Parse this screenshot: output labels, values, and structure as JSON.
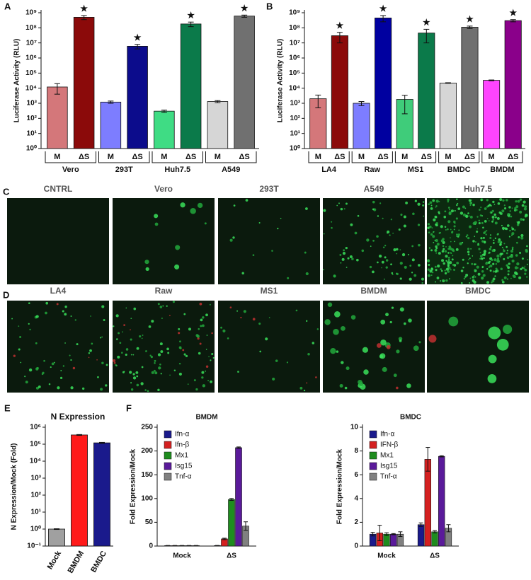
{
  "chart_data": [
    {
      "type": "log_group_bar",
      "panel": "A",
      "ylabel": "Luciferase Activity (RLU)",
      "log": true,
      "ylim": [
        1,
        1000000000
      ],
      "yticks": [
        {
          "value": 1,
          "label": "10⁰"
        },
        {
          "value": 10,
          "label": "10¹"
        },
        {
          "value": 100,
          "label": "10²"
        },
        {
          "value": 1000,
          "label": "10³"
        },
        {
          "value": 10000,
          "label": "10⁴"
        },
        {
          "value": 100000,
          "label": "10⁵"
        },
        {
          "value": 1000000,
          "label": "10⁶"
        },
        {
          "value": 10000000,
          "label": "10⁷"
        },
        {
          "value": 100000000,
          "label": "10⁸"
        },
        {
          "value": 1000000000,
          "label": "10⁹"
        }
      ],
      "groups": [
        {
          "name": "Vero",
          "categories": [
            "M",
            "ΔS"
          ],
          "values": [
            12000,
            500000000
          ],
          "errors": [
            8000,
            150000000
          ],
          "colors": [
            "#d4777a",
            "#8b0a0a"
          ],
          "annotations": [
            null,
            "★"
          ]
        },
        {
          "name": "293T",
          "categories": [
            "M",
            "ΔS"
          ],
          "values": [
            1200,
            6000000
          ],
          "errors": [
            200,
            2000000
          ],
          "colors": [
            "#7d7dff",
            "#0c0c8c"
          ],
          "annotations": [
            null,
            "★"
          ]
        },
        {
          "name": "Huh7.5",
          "categories": [
            "M",
            "ΔS"
          ],
          "values": [
            300,
            180000000
          ],
          "errors": [
            50,
            60000000
          ],
          "colors": [
            "#3fdc84",
            "#0b7a4a"
          ],
          "annotations": [
            null,
            "★"
          ]
        },
        {
          "name": "A549",
          "categories": [
            "M",
            "ΔS"
          ],
          "values": [
            1300,
            600000000
          ],
          "errors": [
            200,
            100000000
          ],
          "colors": [
            "#d6d6d6",
            "#707070"
          ],
          "annotations": [
            null,
            "★"
          ]
        }
      ]
    },
    {
      "type": "log_group_bar",
      "panel": "B",
      "ylabel": "Luciferase Activity (RLU)",
      "log": true,
      "ylim": [
        1,
        1000000000
      ],
      "yticks": [
        {
          "value": 1,
          "label": "10⁰"
        },
        {
          "value": 10,
          "label": "10¹"
        },
        {
          "value": 100,
          "label": "10²"
        },
        {
          "value": 1000,
          "label": "10³"
        },
        {
          "value": 10000,
          "label": "10⁴"
        },
        {
          "value": 100000,
          "label": "10⁵"
        },
        {
          "value": 1000000,
          "label": "10⁶"
        },
        {
          "value": 10000000,
          "label": "10⁷"
        },
        {
          "value": 100000000,
          "label": "10⁸"
        },
        {
          "value": 1000000000,
          "label": "10⁹"
        }
      ],
      "groups": [
        {
          "name": "LA4",
          "categories": [
            "M",
            "ΔS"
          ],
          "values": [
            2000,
            30000000
          ],
          "errors": [
            1500,
            20000000
          ],
          "colors": [
            "#d4777a",
            "#8b0a0a"
          ],
          "annotations": [
            null,
            "★"
          ]
        },
        {
          "name": "Raw",
          "categories": [
            "M",
            "ΔS"
          ],
          "values": [
            1000,
            450000000
          ],
          "errors": [
            300,
            200000000
          ],
          "colors": [
            "#7d7dff",
            "#0000a0"
          ],
          "annotations": [
            null,
            "★"
          ]
        },
        {
          "name": "MS1",
          "categories": [
            "M",
            "ΔS"
          ],
          "values": [
            1800,
            45000000
          ],
          "errors": [
            1600,
            35000000
          ],
          "colors": [
            "#3fcc7a",
            "#0b7a4a"
          ],
          "annotations": [
            null,
            "★"
          ]
        },
        {
          "name": "BMDC",
          "categories": [
            "M",
            "ΔS"
          ],
          "values": [
            22000,
            110000000
          ],
          "errors": [
            1000,
            20000000
          ],
          "colors": [
            "#d6d6d6",
            "#707070"
          ],
          "annotations": [
            null,
            "★"
          ]
        },
        {
          "name": "BMDM",
          "categories": [
            "M",
            "ΔS"
          ],
          "values": [
            33000,
            300000000
          ],
          "errors": [
            2000,
            50000000
          ],
          "colors": [
            "#ff44ff",
            "#8a008a"
          ],
          "annotations": [
            null,
            "★"
          ]
        }
      ]
    },
    {
      "type": "bar",
      "panel": "E",
      "title": "N Expression",
      "ylabel": "N Expression/Mock (Fold)",
      "log": true,
      "ylim": [
        0.1,
        1000000
      ],
      "yticks": [
        {
          "value": 0.1,
          "label": "10⁻¹"
        },
        {
          "value": 1,
          "label": "10⁰"
        },
        {
          "value": 10,
          "label": "10¹"
        },
        {
          "value": 100,
          "label": "10²"
        },
        {
          "value": 1000,
          "label": "10³"
        },
        {
          "value": 10000,
          "label": "10⁴"
        },
        {
          "value": 100000,
          "label": "10⁵"
        },
        {
          "value": 1000000,
          "label": "10⁶"
        }
      ],
      "categories": [
        "Mock",
        "BMDM",
        "BMDC"
      ],
      "values": [
        1,
        350000,
        120000
      ],
      "errors": [
        0.05,
        20000,
        8000
      ],
      "colors": [
        "#a0a0a0",
        "#ff1a1a",
        "#1a1a8c"
      ]
    },
    {
      "type": "grouped_bar",
      "panel": "F",
      "title": "BMDM",
      "ylabel": "Fold Expression/Mock",
      "legend": "upper left",
      "ylim": [
        0,
        250
      ],
      "yticks": [
        0,
        50,
        100,
        150,
        200,
        250
      ],
      "categories": [
        "Mock",
        "ΔS"
      ],
      "series": [
        {
          "name": "Ifn-α",
          "color": "#1a1a8c",
          "values": [
            1,
            1
          ],
          "errors": [
            0.2,
            0.3
          ]
        },
        {
          "name": "Ifn-β",
          "color": "#d42020",
          "values": [
            1,
            15
          ],
          "errors": [
            0.2,
            1.5
          ]
        },
        {
          "name": "Mx1",
          "color": "#1e8c1e",
          "values": [
            1,
            98
          ],
          "errors": [
            0.2,
            2
          ]
        },
        {
          "name": "Isg15",
          "color": "#5a1a9a",
          "values": [
            1,
            207
          ],
          "errors": [
            0.2,
            1.5
          ]
        },
        {
          "name": "Tnf-α",
          "color": "#808080",
          "values": [
            1,
            42
          ],
          "errors": [
            0.2,
            9
          ]
        }
      ]
    },
    {
      "type": "grouped_bar",
      "title": "BMDC",
      "ylabel": "Fold Expression/Mock",
      "legend": "upper left",
      "ylim": [
        0,
        10
      ],
      "yticks": [
        0,
        2,
        4,
        6,
        8,
        10
      ],
      "categories": [
        "Mock",
        "ΔS"
      ],
      "series": [
        {
          "name": "Ifn-α",
          "color": "#1a1a8c",
          "values": [
            1.0,
            1.8
          ],
          "errors": [
            0.15,
            0.15
          ]
        },
        {
          "name": "IFN-β",
          "color": "#d42020",
          "values": [
            1.1,
            7.3
          ],
          "errors": [
            0.65,
            1.0
          ]
        },
        {
          "name": "Mx1",
          "color": "#1e8c1e",
          "values": [
            1.0,
            1.2
          ],
          "errors": [
            0.12,
            0.1
          ]
        },
        {
          "name": "Isg15",
          "color": "#5a1a9a",
          "values": [
            1.0,
            7.55
          ],
          "errors": [
            0.05,
            0.05
          ]
        },
        {
          "name": "Tnf-α",
          "color": "#808080",
          "values": [
            1.0,
            1.5
          ],
          "errors": [
            0.2,
            0.3
          ]
        }
      ]
    }
  ],
  "micrographs": [
    {
      "panel": "C",
      "labels": [
        "CNTRL",
        "Vero",
        "293T",
        "A549",
        "Huh7.5"
      ]
    },
    {
      "panel": "D",
      "labels": [
        "LA4",
        "Raw",
        "MS1",
        "BMDM",
        "BMDC"
      ]
    }
  ]
}
